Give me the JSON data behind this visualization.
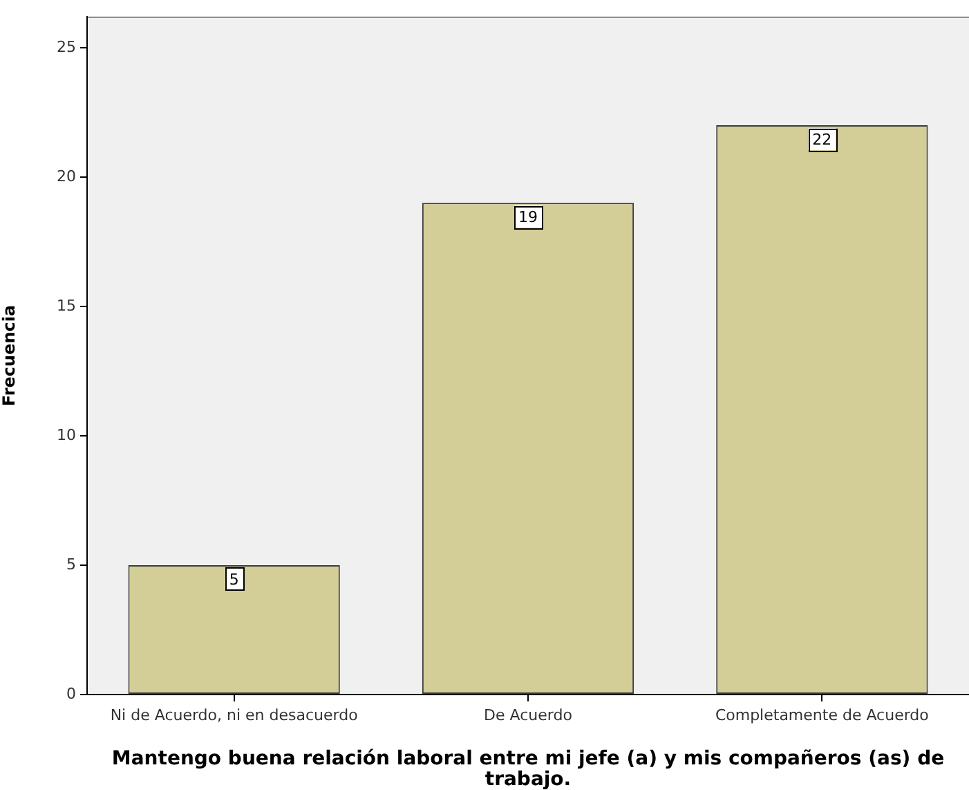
{
  "chart_data": {
    "type": "bar",
    "xlabel": "Mantengo buena relación laboral entre mi jefe (a) y mis compañeros (as) de trabajo.",
    "ylabel": "Frecuencia",
    "categories": [
      "Ni de Acuerdo, ni en desacuerdo",
      "De Acuerdo",
      "Completamente de Acuerdo"
    ],
    "values": [
      5,
      19,
      22
    ],
    "color": "#d3ce97",
    "ylim": [
      0,
      26.2
    ],
    "yticks": [
      0,
      5,
      10,
      15,
      20,
      25
    ],
    "grid": false,
    "legend": false,
    "data_labels": true
  }
}
